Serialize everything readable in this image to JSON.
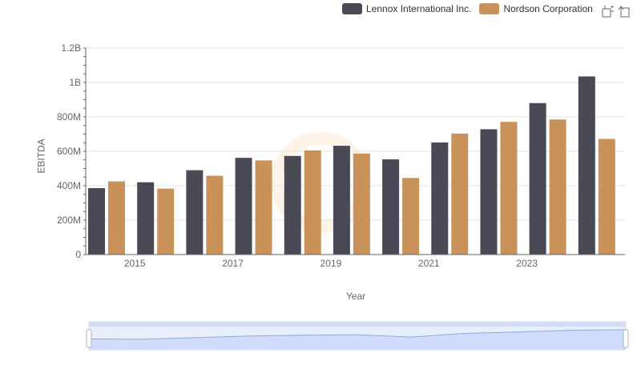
{
  "chart_data": {
    "type": "bar",
    "categories": [
      "2014",
      "2015",
      "2016",
      "2017",
      "2018",
      "2019",
      "2020",
      "2021",
      "2022",
      "2023",
      "2024"
    ],
    "series": [
      {
        "name": "Lennox International Inc.",
        "color": "#4a4a56",
        "values": [
          386000000,
          420000000,
          490000000,
          562000000,
          573000000,
          632000000,
          553000000,
          651000000,
          728000000,
          880000000,
          1035000000
        ]
      },
      {
        "name": "Nordson Corporation",
        "color": "#c9925b",
        "values": [
          425000000,
          383000000,
          458000000,
          547000000,
          605000000,
          587000000,
          445000000,
          703000000,
          771000000,
          785000000,
          672000000
        ]
      }
    ],
    "xlabel": "Year",
    "ylabel": "EBITDA",
    "ylim": [
      0,
      1200000000
    ],
    "yticks": [
      {
        "value": 0,
        "label": "0"
      },
      {
        "value": 200000000,
        "label": "200M"
      },
      {
        "value": 400000000,
        "label": "400M"
      },
      {
        "value": 600000000,
        "label": "600M"
      },
      {
        "value": 800000000,
        "label": "800M"
      },
      {
        "value": 1000000000,
        "label": "1B"
      },
      {
        "value": 1200000000,
        "label": "1.2B"
      }
    ],
    "xtick_labels": [
      "2015",
      "2017",
      "2019",
      "2021",
      "2023"
    ],
    "grid": true,
    "legend_position": "top-right"
  },
  "toolbar": {
    "icons": [
      "zoom-icon",
      "restore-icon"
    ]
  }
}
